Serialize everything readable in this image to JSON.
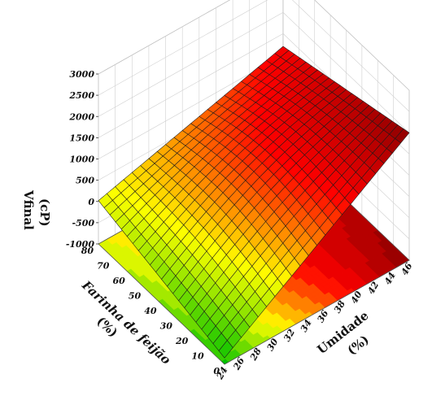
{
  "chart_data": {
    "type": "surface3d",
    "title": "",
    "zlabel_line1": "Vfinal",
    "zlabel_line2": "(cP)",
    "xlabel_line1": "Farinha de feijão",
    "xlabel_line2": "(%)",
    "ylabel_line1": "Umidade",
    "ylabel_line2": "(%)",
    "z_ticks": [
      "3000",
      "2500",
      "2000",
      "1500",
      "1000",
      "500",
      "0",
      "-500",
      "-1000"
    ],
    "x_ticks": [
      "80",
      "70",
      "60",
      "50",
      "40",
      "30",
      "20",
      "10",
      "0"
    ],
    "y_ticks": [
      "24",
      "26",
      "28",
      "30",
      "32",
      "34",
      "36",
      "38",
      "40",
      "42",
      "44",
      "46"
    ],
    "xlim": [
      0,
      80
    ],
    "ylim": [
      24,
      46
    ],
    "zlim": [
      -1000,
      3000
    ],
    "corner_values": [
      {
        "farinha": 80,
        "umidade": 24,
        "vfinal": 20
      },
      {
        "farinha": 0,
        "umidade": 24,
        "vfinal": -850
      },
      {
        "farinha": 80,
        "umidade": 46,
        "vfinal": 1200
      },
      {
        "farinha": 0,
        "umidade": 46,
        "vfinal": 2000
      }
    ],
    "colormap": [
      "#00c000",
      "#ffff00",
      "#ff0000",
      "#800000"
    ],
    "grid": true
  }
}
